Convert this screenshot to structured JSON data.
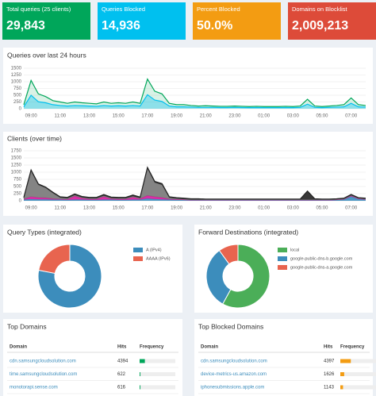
{
  "stats": [
    {
      "title": "Total queries (25 clients)",
      "value": {
        "value": 29843,
        "label": "29,843"
      },
      "color": "#00a65a"
    },
    {
      "title": "Queries Blocked",
      "value": {
        "value": 14936,
        "label": "14,936"
      },
      "color": "#00c0ef"
    },
    {
      "title": "Percent Blocked",
      "value": {
        "value": 50.0,
        "label": "50.0%"
      },
      "color": "#f39c12"
    },
    {
      "title": "Domains on Blocklist",
      "value": {
        "value": 2009213,
        "label": "2,009,213"
      },
      "color": "#dd4b39"
    }
  ],
  "chart_data": [
    {
      "type": "area",
      "title": "Queries over last 24 hours",
      "categories": [
        null,
        "09:00",
        null,
        null,
        null,
        "11:00",
        null,
        null,
        null,
        "13:00",
        null,
        null,
        null,
        "15:00",
        null,
        null,
        null,
        "17:00",
        null,
        null,
        null,
        "19:00",
        null,
        null,
        null,
        "21:00",
        null,
        null,
        null,
        "23:00",
        null,
        null,
        null,
        "01:00",
        null,
        null,
        null,
        "03:00",
        null,
        null,
        null,
        "05:00",
        null,
        null,
        null,
        "07:00",
        null,
        null
      ],
      "series": [
        {
          "color": "#00a65a",
          "values": [
            150,
            1050,
            550,
            450,
            300,
            250,
            200,
            250,
            220,
            200,
            180,
            250,
            200,
            220,
            200,
            250,
            200,
            1100,
            650,
            550,
            200,
            150,
            150,
            120,
            100,
            110,
            100,
            90,
            90,
            100,
            90,
            80,
            90,
            80,
            80,
            80,
            90,
            80,
            100,
            350,
            100,
            80,
            100,
            120,
            150,
            400,
            150,
            120
          ]
        },
        {
          "color": "#00c0ef",
          "values": [
            70,
            500,
            260,
            220,
            150,
            120,
            100,
            120,
            110,
            100,
            90,
            120,
            100,
            110,
            100,
            120,
            100,
            520,
            320,
            270,
            100,
            70,
            70,
            60,
            50,
            50,
            50,
            45,
            45,
            50,
            45,
            40,
            45,
            40,
            40,
            40,
            45,
            40,
            50,
            170,
            50,
            40,
            50,
            60,
            70,
            200,
            70,
            60
          ]
        }
      ],
      "ylim": [
        0,
        1500
      ],
      "yticks": [
        0,
        250,
        500,
        750,
        1000,
        1250,
        1500
      ],
      "grid": true
    },
    {
      "type": "stacked-area",
      "title": "Clients (over time)",
      "categories": [
        null,
        "09:00",
        null,
        null,
        null,
        "11:00",
        null,
        null,
        null,
        "13:00",
        null,
        null,
        null,
        "15:00",
        null,
        null,
        null,
        "17:00",
        null,
        null,
        null,
        "19:00",
        null,
        null,
        null,
        "21:00",
        null,
        null,
        null,
        "23:00",
        null,
        null,
        null,
        "01:00",
        null,
        null,
        null,
        "03:00",
        null,
        null,
        null,
        "05:00",
        null,
        null,
        null,
        "07:00",
        null,
        null
      ],
      "series": [
        {
          "color": "#3c8dbc",
          "values": [
            40,
            60,
            50,
            50,
            40,
            40,
            30,
            40,
            40,
            30,
            30,
            40,
            40,
            30,
            30,
            40,
            40,
            80,
            60,
            50,
            40,
            30,
            30,
            20,
            20,
            20,
            20,
            20,
            20,
            20,
            20,
            20,
            20,
            20,
            20,
            20,
            20,
            20,
            20,
            20,
            20,
            20,
            20,
            30,
            40,
            150,
            60,
            40
          ]
        },
        {
          "color": "#d81b9c",
          "values": [
            20,
            80,
            60,
            50,
            30,
            20,
            20,
            120,
            50,
            30,
            30,
            100,
            30,
            30,
            30,
            80,
            30,
            100,
            80,
            60,
            20,
            20,
            10,
            10,
            10,
            10,
            10,
            10,
            10,
            10,
            10,
            10,
            10,
            10,
            10,
            10,
            10,
            10,
            10,
            10,
            10,
            10,
            10,
            10,
            20,
            30,
            20,
            20
          ]
        },
        {
          "color": "#777777",
          "values": [
            30,
            900,
            450,
            350,
            200,
            50,
            40,
            40,
            30,
            30,
            30,
            40,
            30,
            30,
            30,
            40,
            30,
            950,
            500,
            450,
            50,
            30,
            20,
            10,
            10,
            10,
            10,
            10,
            10,
            10,
            10,
            10,
            10,
            10,
            10,
            10,
            10,
            10,
            10,
            10,
            10,
            10,
            10,
            10,
            10,
            10,
            10,
            10
          ]
        },
        {
          "color": "#222222",
          "values": [
            30,
            40,
            30,
            30,
            30,
            30,
            30,
            40,
            30,
            30,
            30,
            40,
            30,
            30,
            30,
            40,
            30,
            40,
            40,
            40,
            30,
            30,
            30,
            30,
            30,
            20,
            20,
            20,
            20,
            20,
            20,
            20,
            20,
            20,
            20,
            20,
            20,
            20,
            20,
            300,
            30,
            20,
            20,
            20,
            20,
            30,
            20,
            20
          ]
        }
      ],
      "ylim": [
        0,
        1750
      ],
      "yticks": [
        0,
        250,
        500,
        750,
        1000,
        1250,
        1500,
        1750
      ],
      "grid": true
    },
    {
      "type": "donut",
      "title": "Query Types (integrated)",
      "categories": [
        "A (IPv4)",
        "AAAA (IPv6)"
      ],
      "values": [
        78,
        22
      ],
      "colors": [
        "#3c8dbc",
        "#e8644f"
      ]
    },
    {
      "type": "donut",
      "title": "Forward Destinations (integrated)",
      "categories": [
        "local",
        "google-public-dns-b.google.com",
        "google-public-dns-a.google.com"
      ],
      "values": [
        58,
        32,
        10
      ],
      "colors": [
        "#4bae58",
        "#3c8dbc",
        "#e8644f"
      ]
    }
  ],
  "tables": [
    {
      "title": "Top Domains",
      "columns": [
        "Domain",
        "Hits",
        "Frequency"
      ],
      "bar_color": "#00a65a",
      "rows": [
        [
          "cdn.samsungcloudsolution.com",
          4394
        ],
        [
          "time.samsungcloudsolution.com",
          622
        ],
        [
          "monotorapi.sense.com",
          616
        ]
      ]
    },
    {
      "title": "Top Blocked Domains",
      "columns": [
        "Domain",
        "Hits",
        "Frequency"
      ],
      "bar_color": "#f39c12",
      "rows": [
        [
          "cdn.samsungcloudsolution.com",
          4397
        ],
        [
          "device-metrics-us.amazon.com",
          1626
        ],
        [
          "iphonesubmissions.apple.com",
          1143
        ]
      ]
    }
  ]
}
